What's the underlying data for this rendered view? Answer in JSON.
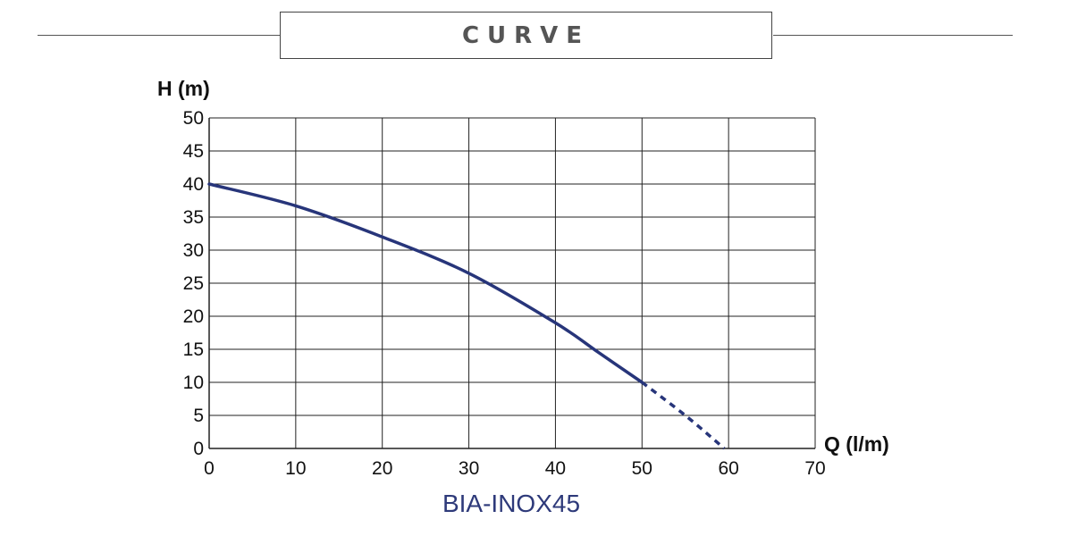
{
  "header": {
    "title": "CURVE"
  },
  "chart_data": {
    "type": "line",
    "title": "CURVE",
    "xlabel": "Q (l/m)",
    "ylabel": "H (m)",
    "xlim": [
      0,
      70
    ],
    "ylim": [
      0,
      50
    ],
    "x_ticks": [
      "0",
      "10",
      "20",
      "30",
      "40",
      "50",
      "60",
      "70"
    ],
    "y_ticks": [
      "0",
      "5",
      "10",
      "15",
      "20",
      "25",
      "30",
      "35",
      "40",
      "45",
      "50"
    ],
    "grid": true,
    "series": [
      {
        "name": "BIA-INOX45",
        "line_color": "#27357a",
        "solid": {
          "x": [
            0,
            10,
            20,
            30,
            40,
            45,
            50
          ],
          "y": [
            40,
            36.7,
            32,
            26.5,
            19,
            14.5,
            10
          ]
        },
        "dashed": {
          "x": [
            50,
            55,
            59.5
          ],
          "y": [
            10,
            5,
            0
          ]
        }
      }
    ],
    "caption": "BIA-INOX45"
  }
}
